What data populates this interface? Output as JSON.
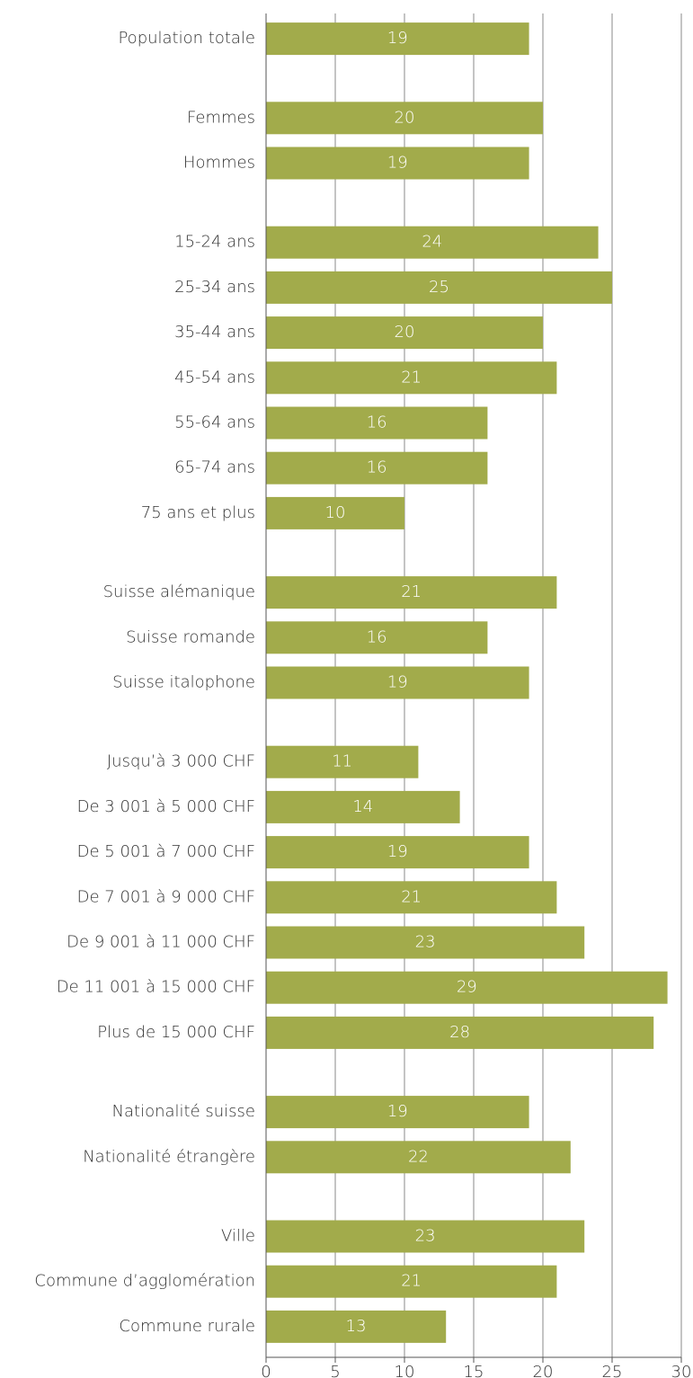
{
  "chart_data": {
    "type": "bar",
    "orientation": "horizontal",
    "categories": [
      "Population totale",
      null,
      "Femmes",
      "Hommes",
      null,
      "15-24 ans",
      "25-34 ans",
      "35-44 ans",
      "45-54 ans",
      "55-64 ans",
      "65-74 ans",
      "75 ans et plus",
      null,
      "Suisse alémanique",
      "Suisse romande",
      "Suisse italophone",
      null,
      "Jusqu’à 3 000 CHF",
      "De 3 001 à 5 000 CHF",
      "De 5 001 à 7 000 CHF",
      "De 7 001 à 9 000 CHF",
      "De 9 001 à 11 000 CHF",
      "De 11 001 à 15 000 CHF",
      "Plus de 15 000 CHF",
      null,
      "Nationalité suisse",
      "Nationalité étrangère",
      null,
      "Ville",
      "Commune d’agglomération",
      "Commune rurale"
    ],
    "values": [
      19,
      null,
      20,
      19,
      null,
      24,
      25,
      20,
      21,
      16,
      16,
      10,
      null,
      21,
      16,
      19,
      null,
      11,
      14,
      19,
      21,
      23,
      29,
      28,
      null,
      19,
      22,
      null,
      23,
      21,
      13
    ],
    "color": "#a2ab4b",
    "xlim": [
      0,
      30
    ],
    "xticks": [
      0,
      5,
      10,
      15,
      20,
      25,
      30
    ],
    "grid": true
  }
}
